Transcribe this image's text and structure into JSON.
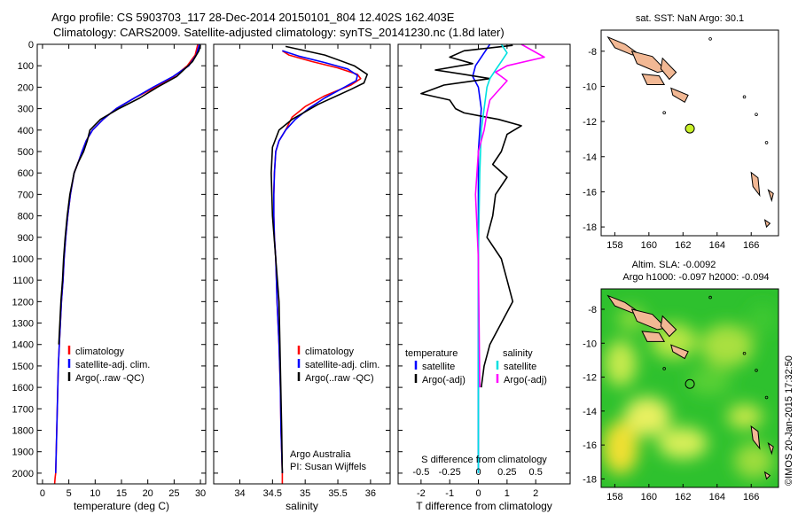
{
  "header": {
    "line1": "Argo profile: CS 5903703_117 28-Dec-2014 20150101_804 12.402S 162.403E",
    "line2": "Climatology: CARS2009. Satellite-adjusted climatology: synTS_20141230.nc (1.8d later)"
  },
  "chart_data": [
    {
      "type": "line",
      "xlabel": "temperature (deg C)",
      "xlim": [
        -1,
        31
      ],
      "xticks": [
        0,
        5,
        10,
        15,
        20,
        25,
        30
      ],
      "ylim": [
        0,
        2050
      ],
      "yticks": [
        0,
        100,
        200,
        300,
        400,
        500,
        600,
        700,
        800,
        900,
        1000,
        1100,
        1200,
        1300,
        1400,
        1500,
        1600,
        1700,
        1800,
        1900,
        2000
      ],
      "y_reversed": true,
      "legend": [
        "climatology",
        "satellite-adj. clim.",
        "Argo(..raw -QC)"
      ],
      "series": [
        {
          "name": "climatology",
          "color": "#ff0000",
          "x": [
            29.5,
            29.0,
            27.5,
            25.0,
            21.5,
            17.5,
            14.0,
            11.5,
            9.5,
            8.3,
            7.5,
            6.8,
            6.0,
            5.3,
            4.8,
            4.4,
            4.1,
            3.9,
            3.6,
            3.4,
            3.2,
            3.0,
            2.9,
            2.8,
            2.7,
            2.6,
            2.5,
            2.4,
            2.3
          ],
          "y": [
            0,
            50,
            100,
            150,
            200,
            250,
            300,
            350,
            400,
            450,
            500,
            550,
            600,
            700,
            800,
            900,
            1000,
            1100,
            1200,
            1300,
            1400,
            1500,
            1600,
            1700,
            1800,
            1900,
            2000,
            2020,
            2050
          ]
        },
        {
          "name": "satellite-adj. clim.",
          "color": "#0000ff",
          "x": [
            29.8,
            29.2,
            27.8,
            24.8,
            21.0,
            17.5,
            14.0,
            11.5,
            9.5,
            8.3,
            7.5,
            6.8,
            6.0,
            5.3,
            4.8,
            4.4,
            4.1,
            3.9,
            3.6,
            3.4,
            3.2,
            3.0,
            2.9,
            2.8,
            2.7,
            2.6,
            2.5
          ],
          "y": [
            0,
            50,
            100,
            150,
            200,
            250,
            300,
            350,
            400,
            450,
            500,
            550,
            600,
            700,
            800,
            900,
            1000,
            1100,
            1200,
            1300,
            1400,
            1500,
            1600,
            1700,
            1800,
            1900,
            2000
          ]
        },
        {
          "name": "Argo(..raw -QC)",
          "color": "#000000",
          "x": [
            30.0,
            29.7,
            28.5,
            25.5,
            21.8,
            18.5,
            14.5,
            11.0,
            9.0,
            8.5,
            7.8,
            6.8,
            6.0,
            5.2,
            4.7,
            4.3,
            4.0,
            3.8,
            3.5,
            3.3,
            3.1
          ],
          "y": [
            5,
            30,
            80,
            150,
            200,
            250,
            300,
            350,
            400,
            450,
            500,
            550,
            600,
            700,
            800,
            900,
            1000,
            1100,
            1200,
            1300,
            1400
          ]
        }
      ]
    },
    {
      "type": "line",
      "xlabel": "salinity",
      "xlim": [
        33.6,
        36.3
      ],
      "xticks": [
        34,
        34.5,
        35,
        35.5,
        36
      ],
      "ylim": [
        0,
        2050
      ],
      "y_reversed": true,
      "legend": [
        "climatology",
        "satellite-adj. clim.",
        "Argo(..raw -QC)"
      ],
      "annotation": [
        "Argo Australia",
        "PI: Susan Wijffels"
      ],
      "series": [
        {
          "name": "climatology",
          "color": "#ff0000",
          "x": [
            34.65,
            34.75,
            35.1,
            35.5,
            35.8,
            35.85,
            35.7,
            35.3,
            35.0,
            34.8,
            34.7,
            34.6,
            34.55,
            34.53,
            34.52,
            34.52,
            34.53,
            34.55,
            34.57,
            34.6,
            34.62,
            34.63,
            34.64,
            34.65,
            34.65
          ],
          "y": [
            30,
            50,
            80,
            110,
            140,
            160,
            190,
            240,
            290,
            340,
            400,
            450,
            500,
            600,
            700,
            800,
            900,
            1000,
            1200,
            1400,
            1600,
            1800,
            1900,
            2000,
            2050
          ]
        },
        {
          "name": "satellite-adj. clim.",
          "color": "#0000ff",
          "x": [
            34.65,
            34.9,
            35.3,
            35.65,
            35.8,
            35.78,
            35.6,
            35.3,
            35.05,
            34.85,
            34.7,
            34.6,
            34.55,
            34.53,
            34.52,
            34.52,
            34.53,
            34.55,
            34.57,
            34.6,
            34.62,
            34.63,
            34.64,
            34.65
          ],
          "y": [
            30,
            55,
            85,
            115,
            145,
            170,
            200,
            250,
            300,
            350,
            400,
            450,
            500,
            600,
            700,
            800,
            900,
            1000,
            1200,
            1400,
            1600,
            1800,
            1900,
            2000
          ]
        },
        {
          "name": "Argo(..raw -QC)",
          "color": "#000000",
          "x": [
            34.7,
            35.3,
            35.75,
            35.95,
            35.9,
            35.7,
            35.2,
            34.8,
            34.6,
            34.5,
            34.48,
            34.5,
            34.55,
            34.6,
            34.62,
            34.64,
            34.65
          ],
          "y": [
            10,
            50,
            100,
            140,
            180,
            210,
            280,
            350,
            400,
            480,
            600,
            800,
            1000,
            1200,
            1500,
            1800,
            2000
          ]
        }
      ]
    },
    {
      "type": "line",
      "xlabel": "T difference from climatology",
      "xlabel2": "S difference from climatology",
      "xlim": [
        -2.8,
        3.2
      ],
      "xticks": [
        -2,
        -1,
        0,
        1,
        2
      ],
      "xticklabels": [
        "-2",
        "-1",
        "0",
        "1",
        "2"
      ],
      "x2ticks": [
        -0.5,
        -0.25,
        0,
        0.25,
        0.5
      ],
      "x2ticklabels": [
        "-0.5",
        "-0.25",
        "0",
        "0.25",
        "0.5"
      ],
      "ylim": [
        0,
        2050
      ],
      "y_reversed": true,
      "legend_titles": [
        "temperature",
        "salinity"
      ],
      "legend": [
        "satellite",
        "Argo(-adj)",
        "satellite",
        "Argo(-adj)"
      ],
      "series": [
        {
          "name": "satellite",
          "color": "#0000ff",
          "x": [
            0.4,
            0.2,
            -0.1,
            -0.2,
            0.0,
            0.1,
            0.05,
            0.0,
            0.0,
            0.0,
            0.0
          ],
          "y": [
            0,
            40,
            100,
            150,
            200,
            300,
            400,
            500,
            800,
            1200,
            2000
          ]
        },
        {
          "name": "Argo(-adj)",
          "color": "#000000",
          "x": [
            1.2,
            -0.5,
            -1.0,
            -0.2,
            -1.5,
            -0.5,
            0.4,
            -1.2,
            -2.0,
            -1.0,
            -0.8,
            -0.5,
            0.3,
            0.7,
            1.5,
            1.0,
            0.8,
            0.5,
            1.0,
            0.6,
            0.5,
            0.3,
            0.8,
            1.0,
            1.2,
            0.8,
            0.4,
            0.2,
            0.1
          ],
          "y": [
            5,
            30,
            60,
            90,
            120,
            140,
            160,
            190,
            230,
            260,
            300,
            320,
            340,
            350,
            380,
            420,
            500,
            560,
            620,
            700,
            800,
            900,
            1000,
            1100,
            1200,
            1300,
            1400,
            1500,
            1600
          ]
        },
        {
          "name": "satellite",
          "color": "#00e0e0",
          "x": [
            0.8,
            1.0,
            0.8,
            0.6,
            0.4,
            0.3,
            0.2,
            0.1,
            0.05,
            0.0,
            0.0
          ],
          "y": [
            0,
            40,
            80,
            120,
            160,
            200,
            300,
            400,
            600,
            1000,
            2000
          ]
        },
        {
          "name": "Argo(-adj)",
          "color": "#ff00ff",
          "x": [
            1.5,
            2.3,
            1.0,
            0.6,
            1.0,
            0.8,
            0.4,
            0.3,
            0.2,
            0.0,
            -0.1,
            0.0,
            0.05
          ],
          "y": [
            0,
            60,
            100,
            130,
            170,
            200,
            260,
            320,
            400,
            500,
            700,
            1000,
            1600
          ]
        }
      ]
    },
    {
      "type": "map",
      "title": "sat. SST: NaN Argo: 30.1",
      "xticks": [
        "158",
        "160",
        "162",
        "164",
        "166"
      ],
      "yticks": [
        "-8",
        "-10",
        "-12",
        "-14",
        "-16",
        "-18"
      ],
      "xlim": [
        157.2,
        167.6
      ],
      "ylim": [
        -18.5,
        -6.8
      ],
      "marker": {
        "lon": 162.403,
        "lat": -12.402,
        "color": "#c8f028"
      }
    },
    {
      "type": "map",
      "title": "Altim. SLA: -0.0092",
      "subtitle": "Argo h1000: -0.097 h2000: -0.094",
      "xticks": [
        "158",
        "160",
        "162",
        "164",
        "166"
      ],
      "yticks": [
        "-8",
        "-10",
        "-12",
        "-14",
        "-16",
        "-18"
      ],
      "xlim": [
        157.2,
        167.6
      ],
      "ylim": [
        -18.5,
        -6.8
      ],
      "marker": {
        "lon": 162.403,
        "lat": -12.402
      }
    }
  ],
  "footer": {
    "credit": "©IMOS 20-Jan-2015 17:32:50"
  }
}
